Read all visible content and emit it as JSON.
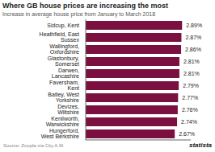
{
  "chart_data": {
    "type": "bar",
    "orientation": "horizontal",
    "title": "Where GB house prices are increasing the most",
    "subtitle": "Increase in average house price from January to March 2018",
    "categories": [
      "Hungerford, West Berkshire",
      "Kenilworth, Warwickshire",
      "Devizes, Wiltshire",
      "Batley, West Yorkshire",
      "Faversham, Kent",
      "Darwen, Lancashire",
      "Glastonbury, Somerset",
      "Wallingford, Oxfordshire",
      "Heathfield, East Sussex",
      "Sidcup, Kent"
    ],
    "values": [
      2.67,
      2.74,
      2.76,
      2.77,
      2.79,
      2.81,
      2.81,
      2.86,
      2.87,
      2.89
    ],
    "value_labels": [
      "2.67%",
      "2.74%",
      "2.76%",
      "2.77%",
      "2.79%",
      "2.81%",
      "2.81%",
      "2.86%",
      "2.87%",
      "2.89%"
    ],
    "color": "#7b1040",
    "xlim": [
      0,
      3.15
    ],
    "data_labels": true,
    "tick_labels": "y",
    "grid": false,
    "annotations": [
      "Source: Zoopla via City A.M.",
      "statista"
    ]
  }
}
